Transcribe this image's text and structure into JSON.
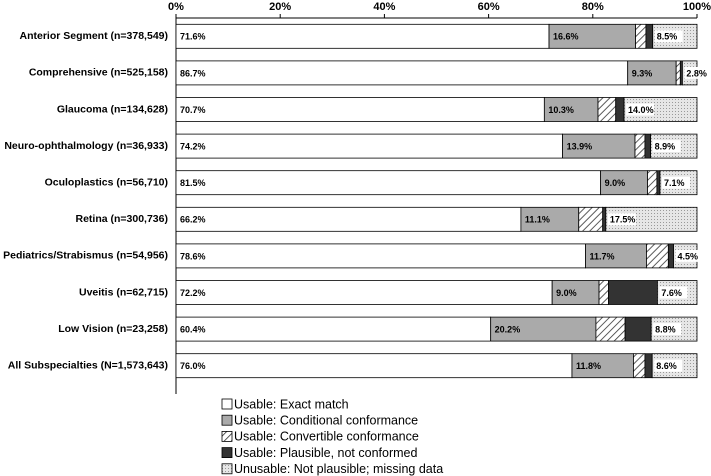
{
  "chart_data": {
    "type": "stacked-barh",
    "categories": [
      "Anterior Segment (n=378,549)",
      "Comprehensive (n=525,158)",
      "Glaucoma (n=134,628)",
      "Neuro-ophthalmology (n=36,933)",
      "Oculoplastics (n=56,710)",
      "Retina (n=300,736)",
      "Pediatrics/Strabismus (n=54,956)",
      "Uveitis (n=62,715)",
      "Low Vision (n=23,258)",
      "All Subspecialties (N=1,573,643)"
    ],
    "series": [
      {
        "name": "Usable: Exact match",
        "color": "#ffffff",
        "pattern": "solid",
        "values": [
          71.6,
          86.7,
          70.7,
          74.2,
          81.5,
          66.2,
          78.6,
          72.2,
          60.4,
          76.0
        ],
        "value_labels": [
          "71.6%",
          "86.7%",
          "70.7%",
          "74.2%",
          "81.5%",
          "66.2%",
          "78.6%",
          "72.2%",
          "60.4%",
          "76.0%"
        ]
      },
      {
        "name": "Usable: Conditional conformance",
        "color": "#aaaaaa",
        "pattern": "solid",
        "values": [
          16.6,
          9.3,
          10.3,
          13.9,
          9.0,
          11.1,
          11.7,
          9.0,
          20.2,
          11.8
        ],
        "value_labels": [
          "16.6%",
          "9.3%",
          "10.3%",
          "13.9%",
          "9.0%",
          "11.1%",
          "11.7%",
          "9.0%",
          "20.2%",
          "11.8%"
        ]
      },
      {
        "name": "Usable: Convertible conformance",
        "color": "#333333",
        "pattern": "hatch",
        "values": [
          2.0,
          0.8,
          3.4,
          1.9,
          1.8,
          4.6,
          4.2,
          1.8,
          5.6,
          2.2
        ]
      },
      {
        "name": "Usable: Plausible, not conformed",
        "color": "#333333",
        "pattern": "solid",
        "values": [
          1.3,
          0.4,
          1.6,
          1.1,
          0.6,
          0.6,
          1.0,
          9.4,
          5.0,
          1.4
        ]
      },
      {
        "name": "Unusable: Not plausible; missing data",
        "color": "#bbbbbb",
        "pattern": "dots",
        "values": [
          8.5,
          2.8,
          14.0,
          8.9,
          7.1,
          17.5,
          4.5,
          7.6,
          8.8,
          8.6
        ],
        "value_labels": [
          "8.5%",
          "2.8%",
          "14.0%",
          "8.9%",
          "7.1%",
          "17.5%",
          "4.5%",
          "7.6%",
          "8.8%",
          "8.6%"
        ]
      }
    ],
    "xlim": [
      0,
      100
    ],
    "xticks": [
      {
        "value": 0,
        "label": "0%"
      },
      {
        "value": 20,
        "label": "20%"
      },
      {
        "value": 40,
        "label": "40%"
      },
      {
        "value": 60,
        "label": "60%"
      },
      {
        "value": 80,
        "label": "80%"
      },
      {
        "value": 100,
        "label": "100%"
      }
    ],
    "legend": "bottom"
  }
}
